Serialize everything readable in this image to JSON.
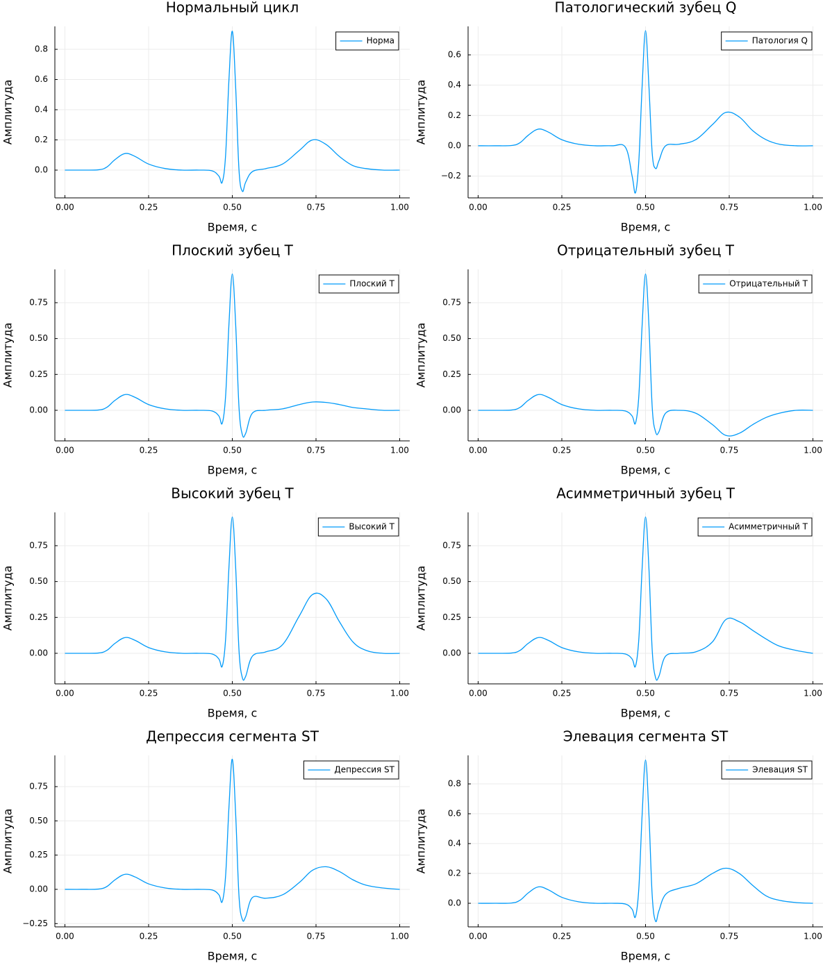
{
  "chart_data": [
    {
      "type": "line",
      "title": "Нормальный цикл",
      "xlabel": "Время, с",
      "ylabel": "Амплитуда",
      "grid": true,
      "legend": "top-right",
      "x": [
        0,
        0.05,
        0.1,
        0.125,
        0.15,
        0.18,
        0.21,
        0.25,
        0.3,
        0.35,
        0.4,
        0.44,
        0.46,
        0.47,
        0.48,
        0.49,
        0.5,
        0.51,
        0.52,
        0.53,
        0.54,
        0.56,
        0.6,
        0.65,
        0.7,
        0.74,
        0.78,
        0.82,
        0.86,
        0.9,
        0.95,
        1
      ],
      "series": [
        {
          "name": "Норма",
          "color": "#009af9",
          "values": [
            0,
            0,
            0.002,
            0.02,
            0.07,
            0.11,
            0.09,
            0.04,
            0.01,
            0,
            0,
            -0.005,
            -0.04,
            -0.08,
            0.1,
            0.6,
            0.92,
            0.55,
            0.0,
            -0.14,
            -0.08,
            -0.01,
            0.01,
            0.04,
            0.13,
            0.2,
            0.17,
            0.09,
            0.03,
            0.01,
            0,
            0
          ]
        }
      ],
      "xlim": [
        -0.03,
        1.03
      ],
      "xticks": [
        {
          "value": 0,
          "label": "0.00"
        },
        {
          "value": 0.25,
          "label": "0.25"
        },
        {
          "value": 0.5,
          "label": "0.50"
        },
        {
          "value": 0.75,
          "label": "0.75"
        },
        {
          "value": 1,
          "label": "1.00"
        }
      ],
      "ylim": [
        -0.184,
        0.952
      ],
      "yticks": [
        {
          "value": 0,
          "label": "0.0"
        },
        {
          "value": 0.2,
          "label": "0.2"
        },
        {
          "value": 0.4,
          "label": "0.4"
        },
        {
          "value": 0.6,
          "label": "0.6"
        },
        {
          "value": 0.8,
          "label": "0.8"
        }
      ]
    },
    {
      "type": "line",
      "title": "Патологический зубец Q",
      "xlabel": "Время, с",
      "ylabel": "Амплитуда",
      "grid": true,
      "legend": "top-right",
      "x": [
        0,
        0.05,
        0.1,
        0.125,
        0.15,
        0.18,
        0.21,
        0.25,
        0.3,
        0.35,
        0.4,
        0.44,
        0.46,
        0.47,
        0.48,
        0.49,
        0.5,
        0.51,
        0.52,
        0.53,
        0.54,
        0.56,
        0.6,
        0.65,
        0.7,
        0.74,
        0.78,
        0.82,
        0.86,
        0.9,
        0.95,
        1
      ],
      "series": [
        {
          "name": "Патология Q",
          "color": "#009af9",
          "values": [
            0,
            0,
            0.002,
            0.02,
            0.07,
            0.11,
            0.09,
            0.04,
            0.01,
            0,
            0,
            -0.01,
            -0.2,
            -0.31,
            -0.1,
            0.4,
            0.76,
            0.4,
            -0.05,
            -0.15,
            -0.1,
            0,
            0.01,
            0.04,
            0.14,
            0.22,
            0.19,
            0.1,
            0.04,
            0.01,
            0,
            0
          ]
        }
      ],
      "xlim": [
        -0.03,
        1.03
      ],
      "xticks": [
        {
          "value": 0,
          "label": "0.00"
        },
        {
          "value": 0.25,
          "label": "0.25"
        },
        {
          "value": 0.5,
          "label": "0.50"
        },
        {
          "value": 0.75,
          "label": "0.75"
        },
        {
          "value": 1,
          "label": "1.00"
        }
      ],
      "ylim": [
        -0.344,
        0.788
      ],
      "yticks": [
        {
          "value": -0.2,
          "label": "−0.2"
        },
        {
          "value": 0,
          "label": "0.0"
        },
        {
          "value": 0.2,
          "label": "0.2"
        },
        {
          "value": 0.4,
          "label": "0.4"
        },
        {
          "value": 0.6,
          "label": "0.6"
        }
      ]
    },
    {
      "type": "line",
      "title": "Плоский зубец T",
      "xlabel": "Время, с",
      "ylabel": "Амплитуда",
      "grid": true,
      "legend": "top-right",
      "x": [
        0,
        0.05,
        0.1,
        0.125,
        0.15,
        0.18,
        0.21,
        0.25,
        0.3,
        0.35,
        0.4,
        0.44,
        0.46,
        0.47,
        0.48,
        0.49,
        0.5,
        0.51,
        0.52,
        0.53,
        0.54,
        0.56,
        0.6,
        0.65,
        0.7,
        0.74,
        0.78,
        0.82,
        0.86,
        0.9,
        0.95,
        1
      ],
      "series": [
        {
          "name": "Плоский T",
          "color": "#009af9",
          "values": [
            0,
            0,
            0.002,
            0.02,
            0.07,
            0.11,
            0.09,
            0.04,
            0.01,
            0,
            0,
            -0.005,
            -0.04,
            -0.09,
            0.1,
            0.6,
            0.95,
            0.6,
            0.02,
            -0.17,
            -0.16,
            -0.02,
            0,
            0.01,
            0.04,
            0.058,
            0.055,
            0.04,
            0.02,
            0.01,
            0,
            0
          ]
        }
      ],
      "xlim": [
        -0.03,
        1.03
      ],
      "xticks": [
        {
          "value": 0,
          "label": "0.00"
        },
        {
          "value": 0.25,
          "label": "0.25"
        },
        {
          "value": 0.5,
          "label": "0.50"
        },
        {
          "value": 0.75,
          "label": "0.75"
        },
        {
          "value": 1,
          "label": "1.00"
        }
      ],
      "ylim": [
        -0.213,
        0.982
      ],
      "yticks": [
        {
          "value": 0,
          "label": "0.00"
        },
        {
          "value": 0.25,
          "label": "0.25"
        },
        {
          "value": 0.5,
          "label": "0.50"
        },
        {
          "value": 0.75,
          "label": "0.75"
        }
      ]
    },
    {
      "type": "line",
      "title": "Отрицательный зубец T",
      "xlabel": "Время, с",
      "ylabel": "Амплитуда",
      "grid": true,
      "legend": "top-right",
      "x": [
        0,
        0.05,
        0.1,
        0.125,
        0.15,
        0.18,
        0.21,
        0.25,
        0.3,
        0.35,
        0.4,
        0.44,
        0.46,
        0.47,
        0.48,
        0.49,
        0.5,
        0.51,
        0.52,
        0.53,
        0.54,
        0.56,
        0.6,
        0.65,
        0.7,
        0.74,
        0.78,
        0.82,
        0.86,
        0.9,
        0.95,
        1
      ],
      "series": [
        {
          "name": "Отрицательный T",
          "color": "#009af9",
          "values": [
            0,
            0,
            0.002,
            0.02,
            0.07,
            0.11,
            0.09,
            0.04,
            0.01,
            0,
            0,
            -0.005,
            -0.04,
            -0.09,
            0.1,
            0.6,
            0.95,
            0.6,
            0.02,
            -0.15,
            -0.15,
            -0.02,
            0,
            -0.02,
            -0.1,
            -0.175,
            -0.16,
            -0.1,
            -0.05,
            -0.02,
            0,
            0
          ]
        }
      ],
      "xlim": [
        -0.03,
        1.03
      ],
      "xticks": [
        {
          "value": 0,
          "label": "0.00"
        },
        {
          "value": 0.25,
          "label": "0.25"
        },
        {
          "value": 0.5,
          "label": "0.50"
        },
        {
          "value": 0.75,
          "label": "0.75"
        },
        {
          "value": 1,
          "label": "1.00"
        }
      ],
      "ylim": [
        -0.213,
        0.982
      ],
      "yticks": [
        {
          "value": 0,
          "label": "0.00"
        },
        {
          "value": 0.25,
          "label": "0.25"
        },
        {
          "value": 0.5,
          "label": "0.50"
        },
        {
          "value": 0.75,
          "label": "0.75"
        }
      ]
    },
    {
      "type": "line",
      "title": "Высокий зубец T",
      "xlabel": "Время, с",
      "ylabel": "Амплитуда",
      "grid": true,
      "legend": "top-right",
      "x": [
        0,
        0.05,
        0.1,
        0.125,
        0.15,
        0.18,
        0.21,
        0.25,
        0.3,
        0.35,
        0.4,
        0.44,
        0.46,
        0.47,
        0.48,
        0.49,
        0.5,
        0.51,
        0.52,
        0.53,
        0.54,
        0.56,
        0.6,
        0.65,
        0.7,
        0.74,
        0.78,
        0.82,
        0.86,
        0.9,
        0.95,
        1
      ],
      "series": [
        {
          "name": "Высокий T",
          "color": "#009af9",
          "values": [
            0,
            0,
            0.002,
            0.02,
            0.07,
            0.11,
            0.09,
            0.04,
            0.01,
            0,
            0,
            -0.005,
            -0.04,
            -0.09,
            0.1,
            0.6,
            0.95,
            0.6,
            0.02,
            -0.17,
            -0.16,
            -0.02,
            0.01,
            0.06,
            0.26,
            0.41,
            0.38,
            0.22,
            0.08,
            0.02,
            0,
            0
          ]
        }
      ],
      "xlim": [
        -0.03,
        1.03
      ],
      "xticks": [
        {
          "value": 0,
          "label": "0.00"
        },
        {
          "value": 0.25,
          "label": "0.25"
        },
        {
          "value": 0.5,
          "label": "0.50"
        },
        {
          "value": 0.75,
          "label": "0.75"
        },
        {
          "value": 1,
          "label": "1.00"
        }
      ],
      "ylim": [
        -0.213,
        0.982
      ],
      "yticks": [
        {
          "value": 0,
          "label": "0.00"
        },
        {
          "value": 0.25,
          "label": "0.25"
        },
        {
          "value": 0.5,
          "label": "0.50"
        },
        {
          "value": 0.75,
          "label": "0.75"
        }
      ]
    },
    {
      "type": "line",
      "title": "Асимметричный зубец T",
      "xlabel": "Время, с",
      "ylabel": "Амплитуда",
      "grid": true,
      "legend": "top-right",
      "x": [
        0,
        0.05,
        0.1,
        0.125,
        0.15,
        0.18,
        0.21,
        0.25,
        0.3,
        0.35,
        0.4,
        0.44,
        0.46,
        0.47,
        0.48,
        0.49,
        0.5,
        0.51,
        0.52,
        0.53,
        0.54,
        0.56,
        0.6,
        0.65,
        0.7,
        0.74,
        0.78,
        0.82,
        0.86,
        0.9,
        0.95,
        1
      ],
      "series": [
        {
          "name": "Асимметричный T",
          "color": "#009af9",
          "values": [
            0,
            0,
            0.002,
            0.02,
            0.07,
            0.11,
            0.09,
            0.04,
            0.01,
            0,
            0,
            -0.005,
            -0.04,
            -0.09,
            0.1,
            0.6,
            0.95,
            0.6,
            0.02,
            -0.17,
            -0.16,
            -0.02,
            0,
            0.01,
            0.08,
            0.235,
            0.22,
            0.16,
            0.1,
            0.05,
            0.02,
            0
          ]
        }
      ],
      "xlim": [
        -0.03,
        1.03
      ],
      "xticks": [
        {
          "value": 0,
          "label": "0.00"
        },
        {
          "value": 0.25,
          "label": "0.25"
        },
        {
          "value": 0.5,
          "label": "0.50"
        },
        {
          "value": 0.75,
          "label": "0.75"
        },
        {
          "value": 1,
          "label": "1.00"
        }
      ],
      "ylim": [
        -0.213,
        0.982
      ],
      "yticks": [
        {
          "value": 0,
          "label": "0.00"
        },
        {
          "value": 0.25,
          "label": "0.25"
        },
        {
          "value": 0.5,
          "label": "0.50"
        },
        {
          "value": 0.75,
          "label": "0.75"
        }
      ]
    },
    {
      "type": "line",
      "title": "Депрессия сегмента ST",
      "xlabel": "Время, с",
      "ylabel": "Амплитуда",
      "grid": true,
      "legend": "top-right",
      "x": [
        0,
        0.05,
        0.1,
        0.125,
        0.15,
        0.18,
        0.21,
        0.25,
        0.3,
        0.35,
        0.4,
        0.44,
        0.46,
        0.47,
        0.48,
        0.49,
        0.5,
        0.51,
        0.52,
        0.53,
        0.54,
        0.56,
        0.6,
        0.65,
        0.7,
        0.74,
        0.78,
        0.82,
        0.86,
        0.9,
        0.95,
        1
      ],
      "series": [
        {
          "name": "Депрессия ST",
          "color": "#009af9",
          "values": [
            0,
            0,
            0.002,
            0.02,
            0.07,
            0.11,
            0.09,
            0.04,
            0.01,
            0,
            0,
            -0.005,
            -0.04,
            -0.09,
            0.1,
            0.6,
            0.95,
            0.55,
            -0.05,
            -0.22,
            -0.2,
            -0.06,
            -0.065,
            -0.04,
            0.05,
            0.14,
            0.165,
            0.13,
            0.07,
            0.03,
            0.01,
            0
          ]
        }
      ],
      "xlim": [
        -0.03,
        1.03
      ],
      "xticks": [
        {
          "value": 0,
          "label": "0.00"
        },
        {
          "value": 0.25,
          "label": "0.25"
        },
        {
          "value": 0.5,
          "label": "0.50"
        },
        {
          "value": 0.75,
          "label": "0.75"
        },
        {
          "value": 1,
          "label": "1.00"
        }
      ],
      "ylim": [
        -0.274,
        0.978
      ],
      "yticks": [
        {
          "value": -0.25,
          "label": "−0.25"
        },
        {
          "value": 0,
          "label": "0.00"
        },
        {
          "value": 0.25,
          "label": "0.25"
        },
        {
          "value": 0.5,
          "label": "0.50"
        },
        {
          "value": 0.75,
          "label": "0.75"
        }
      ]
    },
    {
      "type": "line",
      "title": "Элевация сегмента ST",
      "xlabel": "Время, с",
      "ylabel": "Амплитуда",
      "grid": true,
      "legend": "top-right",
      "x": [
        0,
        0.05,
        0.1,
        0.125,
        0.15,
        0.18,
        0.21,
        0.25,
        0.3,
        0.35,
        0.4,
        0.44,
        0.46,
        0.47,
        0.48,
        0.49,
        0.5,
        0.51,
        0.52,
        0.53,
        0.54,
        0.56,
        0.6,
        0.65,
        0.7,
        0.74,
        0.78,
        0.82,
        0.86,
        0.9,
        0.95,
        1
      ],
      "series": [
        {
          "name": "Элевация ST",
          "color": "#009af9",
          "values": [
            0,
            0,
            0.002,
            0.02,
            0.07,
            0.11,
            0.09,
            0.04,
            0.01,
            0,
            0,
            -0.005,
            -0.04,
            -0.09,
            0.1,
            0.6,
            0.96,
            0.6,
            0.05,
            -0.12,
            -0.05,
            0.06,
            0.1,
            0.13,
            0.2,
            0.235,
            0.2,
            0.12,
            0.05,
            0.02,
            0.005,
            0
          ]
        }
      ],
      "xlim": [
        -0.03,
        1.03
      ],
      "xticks": [
        {
          "value": 0,
          "label": "0.00"
        },
        {
          "value": 0.25,
          "label": "0.25"
        },
        {
          "value": 0.5,
          "label": "0.50"
        },
        {
          "value": 0.75,
          "label": "0.75"
        },
        {
          "value": 1,
          "label": "1.00"
        }
      ],
      "ylim": [
        -0.158,
        0.991
      ],
      "yticks": [
        {
          "value": 0,
          "label": "0.0"
        },
        {
          "value": 0.2,
          "label": "0.2"
        },
        {
          "value": 0.4,
          "label": "0.4"
        },
        {
          "value": 0.6,
          "label": "0.6"
        },
        {
          "value": 0.8,
          "label": "0.8"
        }
      ]
    }
  ]
}
